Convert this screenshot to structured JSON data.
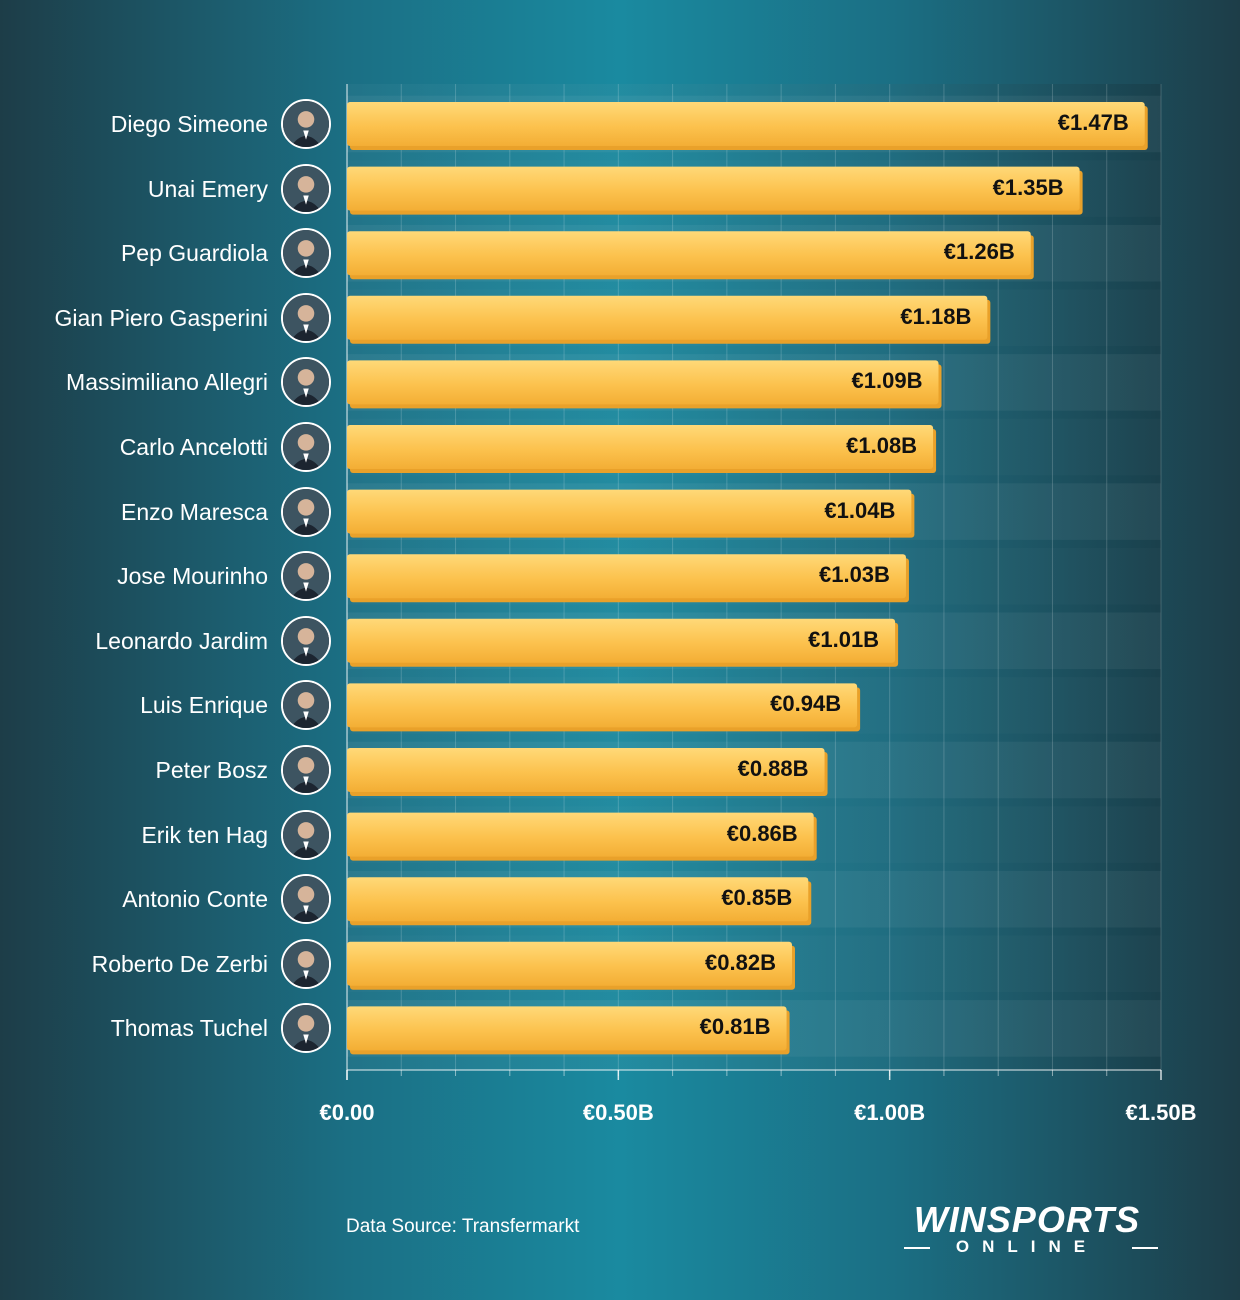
{
  "chart_data": {
    "type": "bar",
    "orientation": "horizontal",
    "categories": [
      "Diego Simeone",
      "Unai Emery",
      "Pep Guardiola",
      "Gian Piero Gasperini",
      "Massimiliano Allegri",
      "Carlo Ancelotti",
      "Enzo Maresca",
      "Jose Mourinho",
      "Leonardo Jardim",
      "Luis Enrique",
      "Peter Bosz",
      "Erik ten Hag",
      "Antonio Conte",
      "Roberto De Zerbi",
      "Thomas Tuchel"
    ],
    "values": [
      1.47,
      1.35,
      1.26,
      1.18,
      1.09,
      1.08,
      1.04,
      1.03,
      1.01,
      0.94,
      0.88,
      0.86,
      0.85,
      0.82,
      0.81
    ],
    "value_labels": [
      "€1.47B",
      "€1.35B",
      "€1.26B",
      "€1.18B",
      "€1.09B",
      "€1.08B",
      "€1.04B",
      "€1.03B",
      "€1.01B",
      "€0.94B",
      "€0.88B",
      "€0.86B",
      "€0.85B",
      "€0.82B",
      "€0.81B"
    ],
    "xlim": [
      0,
      1.5
    ],
    "xticks": [
      0,
      0.5,
      1.0,
      1.5
    ],
    "xtick_labels": [
      "€0.00",
      "€0.50B",
      "€1.00B",
      "€1.50B"
    ],
    "minor_gridline_step": 0.1,
    "grid": true,
    "title": "",
    "xlabel": "",
    "ylabel": "",
    "bar_color": "#fcc24e",
    "bar_shadow_color": "#e9a12a",
    "avatar_icon": "person-portrait-icon"
  },
  "footer": {
    "source": "Data Source: Transfermarkt"
  },
  "logo": {
    "main": "WINSPORTS",
    "sub": "ONLINE"
  }
}
